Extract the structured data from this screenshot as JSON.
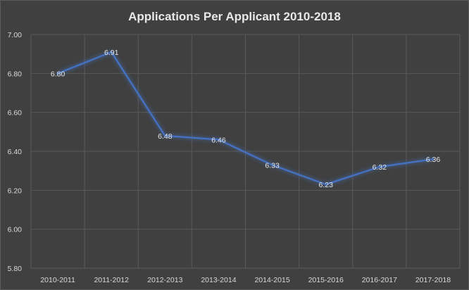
{
  "chart_data": {
    "type": "line",
    "title": "Applications Per Applicant 2010-2018",
    "categories": [
      "2010-2011",
      "2011-2012",
      "2012-2013",
      "2013-2014",
      "2014-2015",
      "2015-2016",
      "2016-2017",
      "2017-2018"
    ],
    "series": [
      {
        "values": [
          6.8,
          6.91,
          6.48,
          6.46,
          6.33,
          6.23,
          6.32,
          6.36
        ]
      }
    ],
    "data_labels": [
      "6.80",
      "6.91",
      "6.48",
      "6.46",
      "6.33",
      "6.23",
      "6.32",
      "6.36"
    ],
    "y_ticks": [
      "5.80",
      "6.00",
      "6.20",
      "6.40",
      "6.60",
      "6.80",
      "7.00"
    ],
    "ylim": [
      5.8,
      7.0
    ],
    "xlabel": "",
    "ylabel": "",
    "grid": true,
    "legend": "none",
    "colors": {
      "background": "#404040",
      "line": "#4472c4",
      "grid": "#5a5a5a",
      "text": "#d9d9d9"
    }
  }
}
